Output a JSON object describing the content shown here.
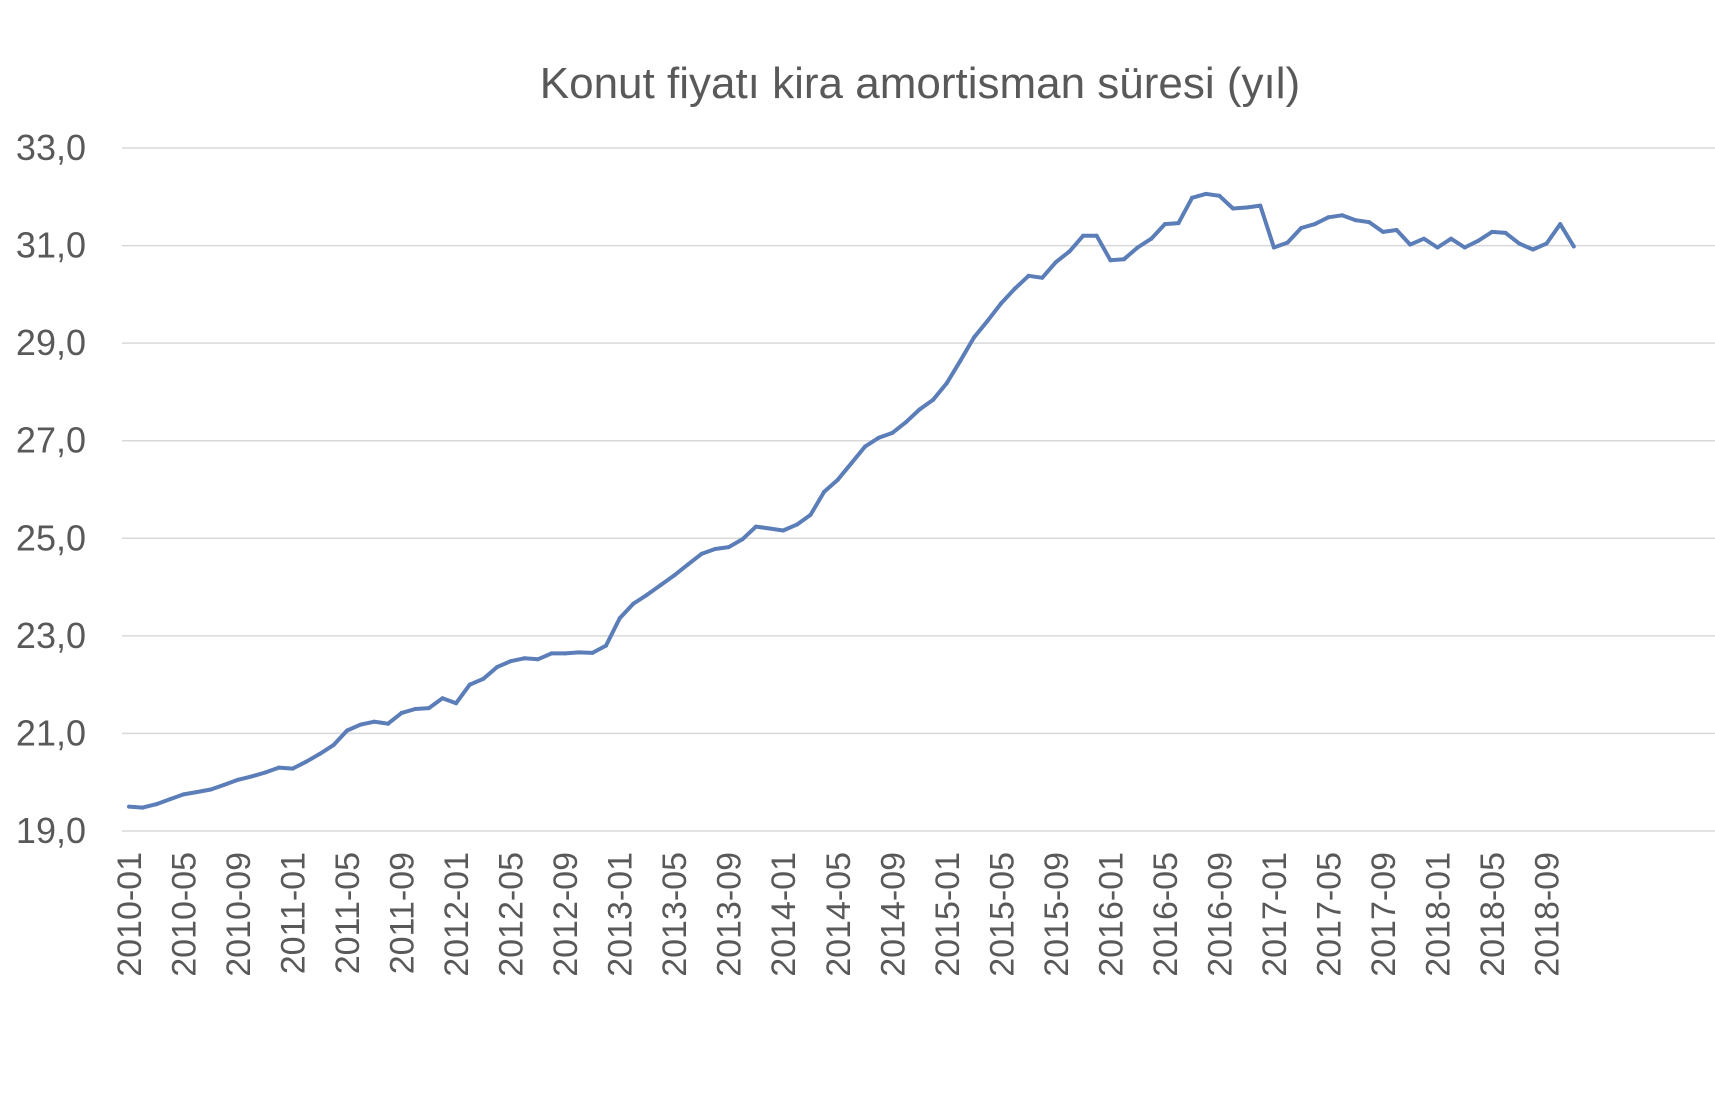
{
  "chart_data": {
    "type": "line",
    "title": "Konut fiyatı kira amortisman süresi (yıl)",
    "xlabel": "",
    "ylabel": "",
    "ylim": [
      19.0,
      33.0
    ],
    "yticks": [
      "19,0",
      "21,0",
      "23,0",
      "25,0",
      "27,0",
      "29,0",
      "31,0",
      "33,0"
    ],
    "ytick_values": [
      19,
      21,
      23,
      25,
      27,
      29,
      31,
      33
    ],
    "x_tick_labels": [
      "2010-01",
      "2010-05",
      "2010-09",
      "2011-01",
      "2011-05",
      "2011-09",
      "2012-01",
      "2012-05",
      "2012-09",
      "2013-01",
      "2013-05",
      "2013-09",
      "2014-01",
      "2014-05",
      "2014-09",
      "2015-01",
      "2015-05",
      "2015-09",
      "2016-01",
      "2016-05",
      "2016-09",
      "2017-01",
      "2017-05",
      "2017-09",
      "2018-01",
      "2018-05",
      "2018-09"
    ],
    "grid": true,
    "legend": "none",
    "line_color": "#5b7db8",
    "x": [
      "2010-01",
      "2010-02",
      "2010-03",
      "2010-04",
      "2010-05",
      "2010-06",
      "2010-07",
      "2010-08",
      "2010-09",
      "2010-10",
      "2010-11",
      "2010-12",
      "2011-01",
      "2011-02",
      "2011-03",
      "2011-04",
      "2011-05",
      "2011-06",
      "2011-07",
      "2011-08",
      "2011-09",
      "2011-10",
      "2011-11",
      "2011-12",
      "2012-01",
      "2012-02",
      "2012-03",
      "2012-04",
      "2012-05",
      "2012-06",
      "2012-07",
      "2012-08",
      "2012-09",
      "2012-10",
      "2012-11",
      "2012-12",
      "2013-01",
      "2013-02",
      "2013-03",
      "2013-04",
      "2013-05",
      "2013-06",
      "2013-07",
      "2013-08",
      "2013-09",
      "2013-10",
      "2013-11",
      "2013-12",
      "2014-01",
      "2014-02",
      "2014-03",
      "2014-04",
      "2014-05",
      "2014-06",
      "2014-07",
      "2014-08",
      "2014-09",
      "2014-10",
      "2014-11",
      "2014-12",
      "2015-01",
      "2015-02",
      "2015-03",
      "2015-04",
      "2015-05",
      "2015-06",
      "2015-07",
      "2015-08",
      "2015-09",
      "2015-10",
      "2015-11",
      "2015-12",
      "2016-01",
      "2016-02",
      "2016-03",
      "2016-04",
      "2016-05",
      "2016-06",
      "2016-07",
      "2016-08",
      "2016-09",
      "2016-10",
      "2016-11",
      "2016-12",
      "2017-01",
      "2017-02",
      "2017-03",
      "2017-04",
      "2017-05",
      "2017-06",
      "2017-07",
      "2017-08",
      "2017-09",
      "2017-10",
      "2017-11",
      "2017-12",
      "2018-01",
      "2018-02",
      "2018-03",
      "2018-04",
      "2018-05",
      "2018-06",
      "2018-07",
      "2018-08",
      "2018-09",
      "2018-10",
      "2018-11"
    ],
    "values": [
      19.5,
      19.48,
      19.55,
      19.65,
      19.75,
      19.8,
      19.85,
      19.95,
      20.05,
      20.12,
      20.2,
      20.3,
      20.28,
      20.42,
      20.58,
      20.76,
      21.06,
      21.18,
      21.24,
      21.2,
      21.42,
      21.5,
      21.52,
      21.72,
      21.62,
      22.0,
      22.12,
      22.36,
      22.48,
      22.54,
      22.52,
      22.64,
      22.64,
      22.66,
      22.65,
      22.8,
      23.36,
      23.66,
      23.84,
      24.04,
      24.24,
      24.46,
      24.68,
      24.78,
      24.82,
      24.98,
      25.24,
      25.2,
      25.16,
      25.28,
      25.48,
      25.95,
      26.2,
      26.54,
      26.88,
      27.06,
      27.16,
      27.38,
      27.64,
      27.84,
      28.18,
      28.64,
      29.12,
      29.46,
      29.82,
      30.12,
      30.38,
      30.34,
      30.66,
      30.88,
      31.2,
      31.2,
      30.7,
      30.72,
      30.96,
      31.14,
      31.44,
      31.46,
      31.98,
      32.06,
      32.02,
      31.76,
      31.78,
      31.82,
      30.96,
      31.06,
      31.36,
      31.44,
      31.58,
      31.62,
      31.52,
      31.48,
      31.28,
      31.32,
      31.02,
      31.14,
      30.96,
      31.14,
      30.96,
      31.1,
      31.28,
      31.26,
      31.04,
      30.92,
      31.04,
      31.44,
      30.98
    ]
  }
}
